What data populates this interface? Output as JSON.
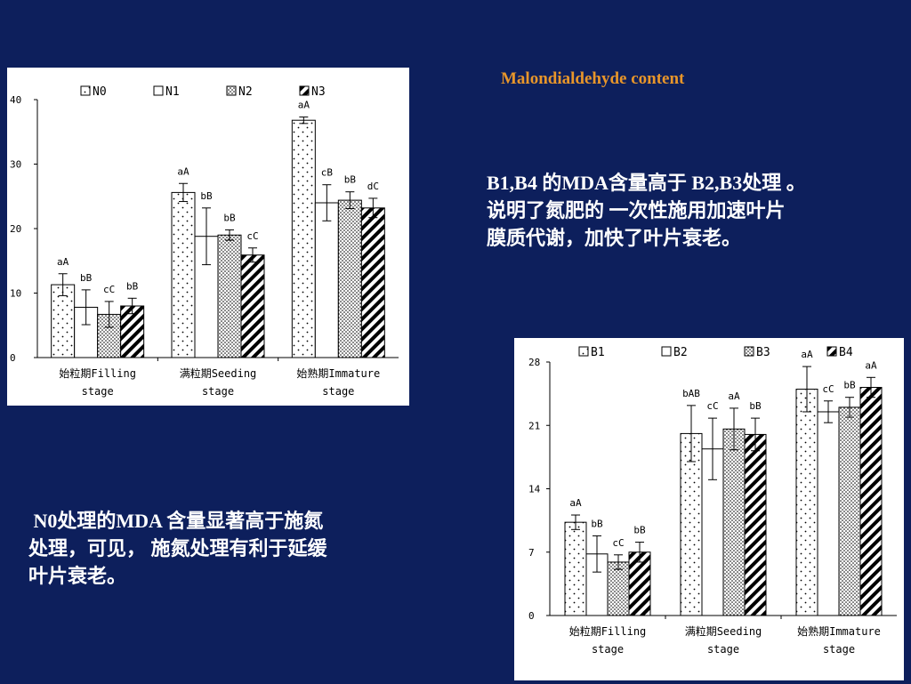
{
  "slide": {
    "title": "Malondialdehyde content",
    "note_right_lines": [
      "B1,B4 的MDA含量高于 B2,B3处理 。",
      "说明了氮肥的 一次性施用加速叶片",
      "膜质代谢，加快了叶片衰老。"
    ],
    "note_left_lines": [
      " N0处理的MDA 含量显著高于施氮",
      "处理，可见， 施氮处理有利于延缓",
      "叶片衰老。"
    ]
  },
  "chart_data": [
    {
      "type": "bar",
      "categories": [
        [
          "始粒期Filling",
          "stage"
        ],
        [
          "满粒期Seeding",
          "stage"
        ],
        [
          "始熟期Immature",
          "stage"
        ]
      ],
      "ylim": [
        0,
        40
      ],
      "yticks": [
        0,
        10,
        20,
        30,
        40
      ],
      "legend_position": "top",
      "series": [
        {
          "name": "N0",
          "pattern": "dots",
          "values": [
            11.3,
            25.6,
            36.8
          ],
          "errors": [
            1.7,
            1.4,
            0.5
          ],
          "labels": [
            "aA",
            "aA",
            "aA"
          ]
        },
        {
          "name": "N1",
          "pattern": "white",
          "values": [
            7.8,
            18.8,
            24.0
          ],
          "errors": [
            2.7,
            4.4,
            2.8
          ],
          "labels": [
            "bB",
            "bB",
            "cB"
          ]
        },
        {
          "name": "N2",
          "pattern": "dense",
          "values": [
            6.7,
            19.0,
            24.4
          ],
          "errors": [
            2.0,
            0.8,
            1.3
          ],
          "labels": [
            "cC",
            "bB",
            "bB"
          ]
        },
        {
          "name": "N3",
          "pattern": "hatch",
          "values": [
            8.0,
            15.9,
            23.2
          ],
          "errors": [
            1.2,
            1.1,
            1.5
          ],
          "labels": [
            "bB",
            "cC",
            "dC"
          ]
        }
      ]
    },
    {
      "type": "bar",
      "categories": [
        [
          "始粒期Filling",
          "stage"
        ],
        [
          "满粒期Seeding",
          "stage"
        ],
        [
          "始熟期Immature",
          "stage"
        ]
      ],
      "ylim": [
        0,
        28
      ],
      "yticks": [
        0,
        7,
        14,
        21,
        28
      ],
      "legend_position": "top",
      "series": [
        {
          "name": "B1",
          "pattern": "dots",
          "values": [
            10.3,
            20.1,
            25.0
          ],
          "errors": [
            0.8,
            3.1,
            2.5
          ],
          "labels": [
            "aA",
            "bAB",
            "aA"
          ]
        },
        {
          "name": "B2",
          "pattern": "white",
          "values": [
            6.8,
            18.4,
            22.5
          ],
          "errors": [
            2.0,
            3.4,
            1.2
          ],
          "labels": [
            "bB",
            "cC",
            "cC"
          ]
        },
        {
          "name": "B3",
          "pattern": "dense",
          "values": [
            5.9,
            20.6,
            23.0
          ],
          "errors": [
            0.8,
            2.3,
            1.1
          ],
          "labels": [
            "cC",
            "aA",
            "bB"
          ]
        },
        {
          "name": "B4",
          "pattern": "hatch",
          "values": [
            7.0,
            20.0,
            25.2
          ],
          "errors": [
            1.1,
            1.8,
            1.1
          ],
          "labels": [
            "bB",
            "bB",
            "aA"
          ]
        }
      ]
    }
  ]
}
